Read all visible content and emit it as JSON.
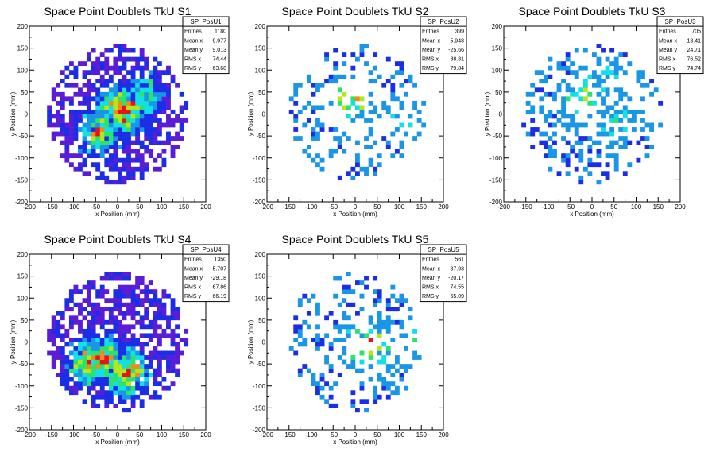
{
  "chart_data": [
    {
      "type": "heatmap",
      "title": "Space Point Doublets TkU S1",
      "xlabel": "x Position (mm)",
      "ylabel": "y Position (mm)",
      "xlim": [
        -200,
        200
      ],
      "ylim": [
        -200,
        200
      ],
      "xticks": [
        "-200",
        "-150",
        "-100",
        "-50",
        "0",
        "50",
        "100",
        "150",
        "200"
      ],
      "yticks": [
        "-200",
        "-150",
        "-100",
        "-50",
        "0",
        "50",
        "100",
        "150",
        "200"
      ],
      "grid": false,
      "stats": {
        "name": "SP_PosU1",
        "rows": [
          {
            "label": "Entries",
            "value": "1180"
          },
          {
            "label": "Mean x",
            "value": "9.977"
          },
          {
            "label": "Mean y",
            "value": "9.013"
          },
          {
            "label": "RMS x",
            "value": "74.44"
          },
          {
            "label": "RMS y",
            "value": "63.68"
          }
        ]
      },
      "distribution": {
        "seed": 11,
        "density": 0.62,
        "bands": [
          [
            10,
            10,
            0.7,
            1.0
          ],
          [
            -40,
            -40,
            0.5,
            0.7
          ],
          [
            60,
            40,
            0.4,
            0.6
          ]
        ],
        "scale": "heavy"
      }
    },
    {
      "type": "heatmap",
      "title": "Space Point Doublets TkU S2",
      "xlabel": "x Position (mm)",
      "ylabel": "y Position (mm)",
      "xlim": [
        -200,
        200
      ],
      "ylim": [
        -200,
        200
      ],
      "xticks": [
        "-200",
        "-150",
        "-100",
        "-50",
        "0",
        "50",
        "100",
        "150",
        "200"
      ],
      "yticks": [
        "-200",
        "-150",
        "-100",
        "-50",
        "0",
        "50",
        "100",
        "150",
        "200"
      ],
      "grid": false,
      "stats": {
        "name": "SP_PosU2",
        "rows": [
          {
            "label": "Entries",
            "value": "399"
          },
          {
            "label": "Mean x",
            "value": "5.948"
          },
          {
            "label": "Mean y",
            "value": "-25.66"
          },
          {
            "label": "RMS x",
            "value": "88.81"
          },
          {
            "label": "RMS y",
            "value": "79.84"
          }
        ]
      },
      "distribution": {
        "seed": 23,
        "density": 0.22,
        "bands": [
          [
            -10,
            35,
            0.0,
            0.8
          ],
          [
            110,
            -20,
            0.0,
            0.4
          ],
          [
            -100,
            -95,
            0.0,
            0.4
          ]
        ],
        "scale": "light"
      }
    },
    {
      "type": "heatmap",
      "title": "Space Point Doublets TkU S3",
      "xlabel": "x Position (mm)",
      "ylabel": "y Position (mm)",
      "xlim": [
        -200,
        200
      ],
      "ylim": [
        -200,
        200
      ],
      "xticks": [
        "-200",
        "-150",
        "-100",
        "-50",
        "0",
        "50",
        "100",
        "150",
        "200"
      ],
      "yticks": [
        "-200",
        "-150",
        "-100",
        "-50",
        "0",
        "50",
        "100",
        "150",
        "200"
      ],
      "grid": false,
      "stats": {
        "name": "SP_PosU3",
        "rows": [
          {
            "label": "Entries",
            "value": "705"
          },
          {
            "label": "Mean x",
            "value": "13.41"
          },
          {
            "label": "Mean y",
            "value": "24.71"
          },
          {
            "label": "RMS x",
            "value": "76.52"
          },
          {
            "label": "RMS y",
            "value": "74.74"
          }
        ]
      },
      "distribution": {
        "seed": 37,
        "density": 0.38,
        "bands": [
          [
            -20,
            40,
            0.0,
            0.7
          ],
          [
            50,
            -20,
            0.0,
            0.5
          ],
          [
            40,
            75,
            0.0,
            0.5
          ]
        ],
        "scale": "light"
      }
    },
    {
      "type": "heatmap",
      "title": "Space Point Doublets TkU S4",
      "xlabel": "x Position (mm)",
      "ylabel": "y Position (mm)",
      "xlim": [
        -200,
        200
      ],
      "ylim": [
        -200,
        200
      ],
      "xticks": [
        "-200",
        "-150",
        "-100",
        "-50",
        "0",
        "50",
        "100",
        "150",
        "200"
      ],
      "yticks": [
        "-200",
        "-150",
        "-100",
        "-50",
        "0",
        "50",
        "100",
        "150",
        "200"
      ],
      "grid": false,
      "stats": {
        "name": "SP_PosU4",
        "rows": [
          {
            "label": "Entries",
            "value": "1350"
          },
          {
            "label": "Mean x",
            "value": "5.707"
          },
          {
            "label": "Mean y",
            "value": "-29.18"
          },
          {
            "label": "RMS x",
            "value": "67.86"
          },
          {
            "label": "RMS y",
            "value": "66.19"
          }
        ]
      },
      "distribution": {
        "seed": 53,
        "density": 0.66,
        "bands": [
          [
            -40,
            -40,
            0.4,
            0.9
          ],
          [
            20,
            -70,
            0.4,
            0.9
          ],
          [
            -60,
            -50,
            0.4,
            0.8
          ]
        ],
        "scale": "heavy"
      }
    },
    {
      "type": "heatmap",
      "title": "Space Point Doublets TkU S5",
      "xlabel": "x Position (mm)",
      "ylabel": "y Position (mm)",
      "xlim": [
        -200,
        200
      ],
      "ylim": [
        -200,
        200
      ],
      "xticks": [
        "-200",
        "-150",
        "-100",
        "-50",
        "0",
        "50",
        "100",
        "150",
        "200"
      ],
      "yticks": [
        "-200",
        "-150",
        "-100",
        "-50",
        "0",
        "50",
        "100",
        "150",
        "200"
      ],
      "grid": false,
      "stats": {
        "name": "SP_PosU5",
        "rows": [
          {
            "label": "Entries",
            "value": "561"
          },
          {
            "label": "Mean x",
            "value": "37.93"
          },
          {
            "label": "Mean y",
            "value": "-20.17"
          },
          {
            "label": "RMS x",
            "value": "74.55"
          },
          {
            "label": "RMS y",
            "value": "65.09"
          }
        ]
      },
      "distribution": {
        "seed": 71,
        "density": 0.3,
        "bands": [
          [
            30,
            -10,
            0.0,
            0.9
          ],
          [
            70,
            -30,
            0.0,
            0.5
          ],
          [
            140,
            20,
            0.0,
            0.5
          ]
        ],
        "scale": "light"
      }
    }
  ],
  "palette": {
    "violet": "#5a1cd6",
    "blue": "#1b2ee6",
    "sky": "#1a96e6",
    "cyan": "#12e0e6",
    "green": "#2be36b",
    "yellowgreen": "#b5e61a",
    "orange": "#f2891a",
    "red": "#e6141a",
    "frame": "#000000",
    "statsbox_border": "#000000",
    "statsbox_fill": "#ffffff"
  }
}
